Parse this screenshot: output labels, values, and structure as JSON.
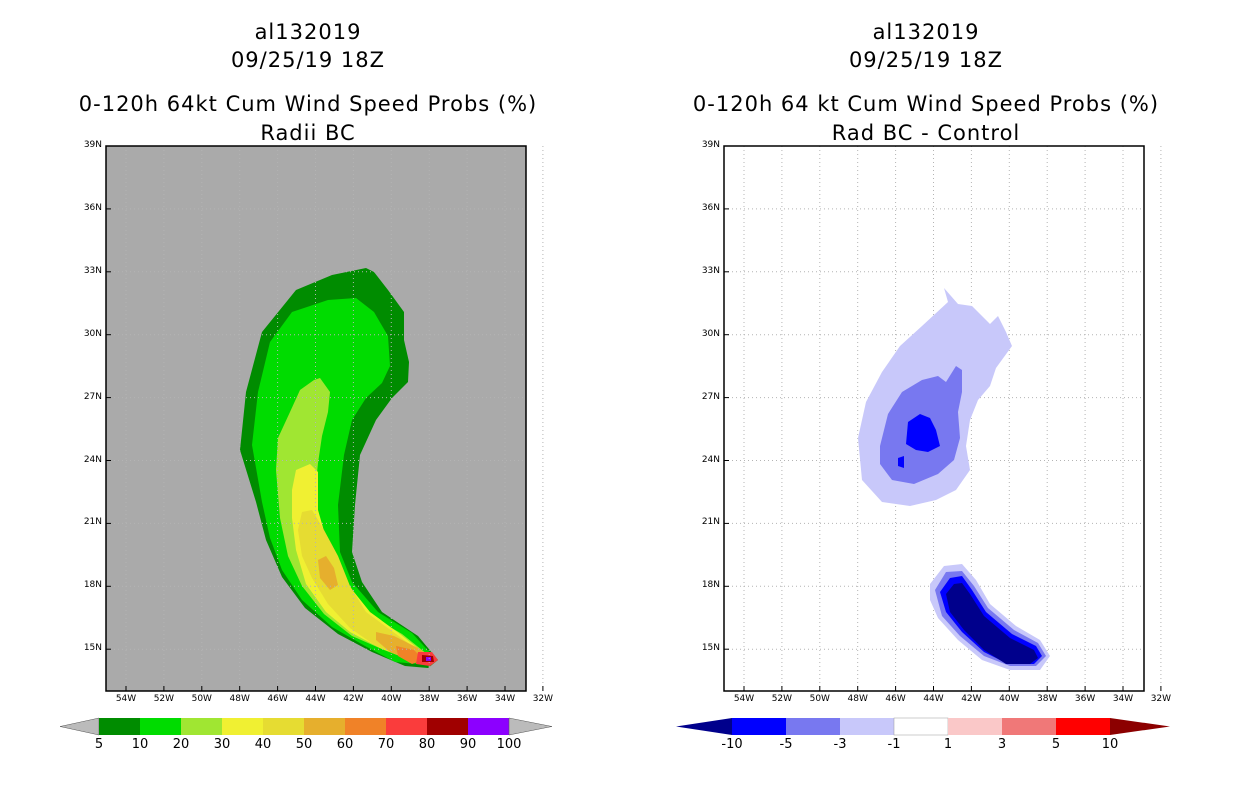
{
  "storm_id": "al132019",
  "datetime": "09/25/19 18Z",
  "left_panel": {
    "title": "0-120h 64kt Cum Wind Speed Probs (%)",
    "subtitle": "Radii BC",
    "colorbar": {
      "labels": [
        "5",
        "10",
        "20",
        "30",
        "40",
        "50",
        "60",
        "70",
        "80",
        "90",
        "100"
      ],
      "colors": [
        "#008c00",
        "#00dc00",
        "#a0e632",
        "#f0f032",
        "#e6dc32",
        "#e6af2d",
        "#f08228",
        "#fa3c3c",
        "#a00000",
        "#8c00ff"
      ],
      "extend_color": "#bbbbbb"
    }
  },
  "right_panel": {
    "title": "0-120h 64 kt Cum Wind Speed Probs (%)",
    "subtitle": "Rad BC - Control",
    "colorbar": {
      "labels": [
        "-10",
        "-5",
        "-3",
        "-1",
        "1",
        "3",
        "5",
        "10"
      ],
      "colors": [
        "#0000ff",
        "#7878f0",
        "#c8c8fa",
        "#ffffff",
        "#fac8c8",
        "#f07878",
        "#ff0000"
      ],
      "low_color": "#00008c",
      "high_color": "#8c0000"
    }
  },
  "axes": {
    "lat_labels": [
      "39N",
      "36N",
      "33N",
      "30N",
      "27N",
      "24N",
      "21N",
      "18N",
      "15N"
    ],
    "lon_labels": [
      "54W",
      "52W",
      "50W",
      "48W",
      "46W",
      "44W",
      "42W",
      "40W",
      "38W",
      "36W",
      "34W",
      "32W"
    ]
  },
  "colors": {
    "land_gray": "#aaaaaa"
  }
}
